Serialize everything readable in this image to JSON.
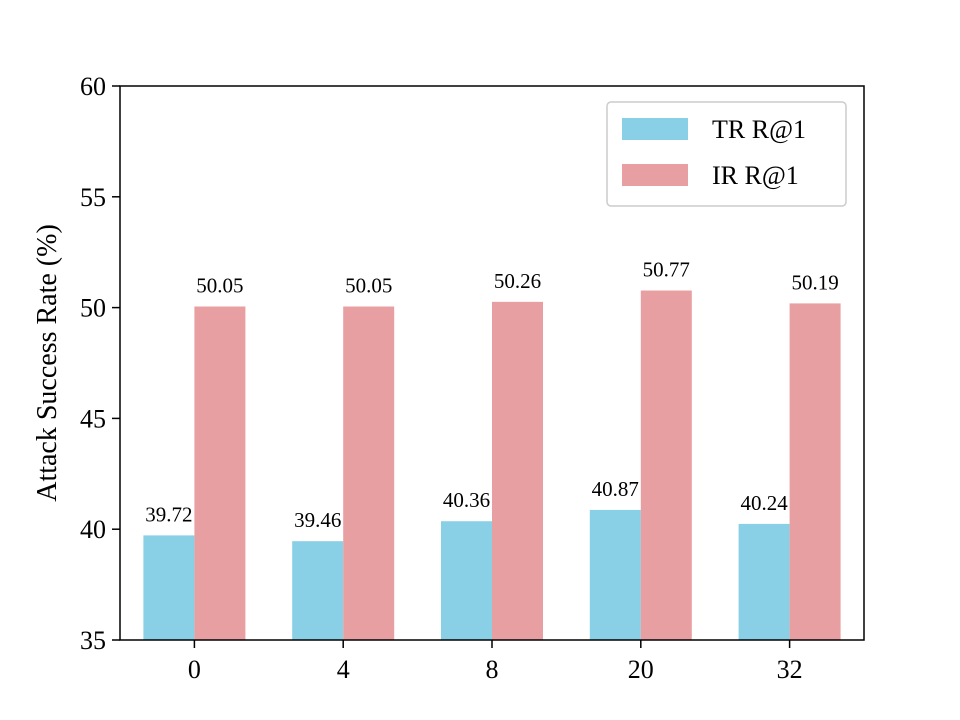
{
  "chart_data": {
    "type": "bar",
    "title": "",
    "xlabel": "",
    "ylabel": "Attack Success Rate (%)",
    "ylim": [
      35,
      60
    ],
    "yticks": [
      35,
      40,
      45,
      50,
      55,
      60
    ],
    "categories": [
      "0",
      "4",
      "8",
      "20",
      "32"
    ],
    "series": [
      {
        "name": "TR R@1",
        "color": "#89CFE6",
        "values": [
          39.72,
          39.46,
          40.36,
          40.87,
          40.24
        ],
        "labels": [
          "39.72",
          "39.46",
          "40.36",
          "40.87",
          "40.24"
        ]
      },
      {
        "name": "IR R@1",
        "color": "#E89FA1",
        "values": [
          50.05,
          50.05,
          50.26,
          50.77,
          50.19
        ],
        "labels": [
          "50.05",
          "50.05",
          "50.26",
          "50.77",
          "50.19"
        ]
      }
    ],
    "legend_position": "top-right",
    "grid": false
  }
}
